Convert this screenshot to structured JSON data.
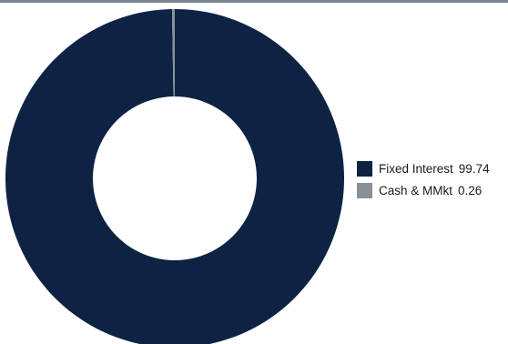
{
  "chart_data": {
    "type": "pie",
    "style": "donut",
    "categories": [
      "Fixed Interest",
      "Cash & MMkt"
    ],
    "values": [
      99.74,
      0.26
    ],
    "value_labels": [
      "99.74",
      "0.26"
    ],
    "colors": [
      "#0e2344",
      "#8a9097"
    ],
    "legend_position": "right",
    "title": ""
  }
}
